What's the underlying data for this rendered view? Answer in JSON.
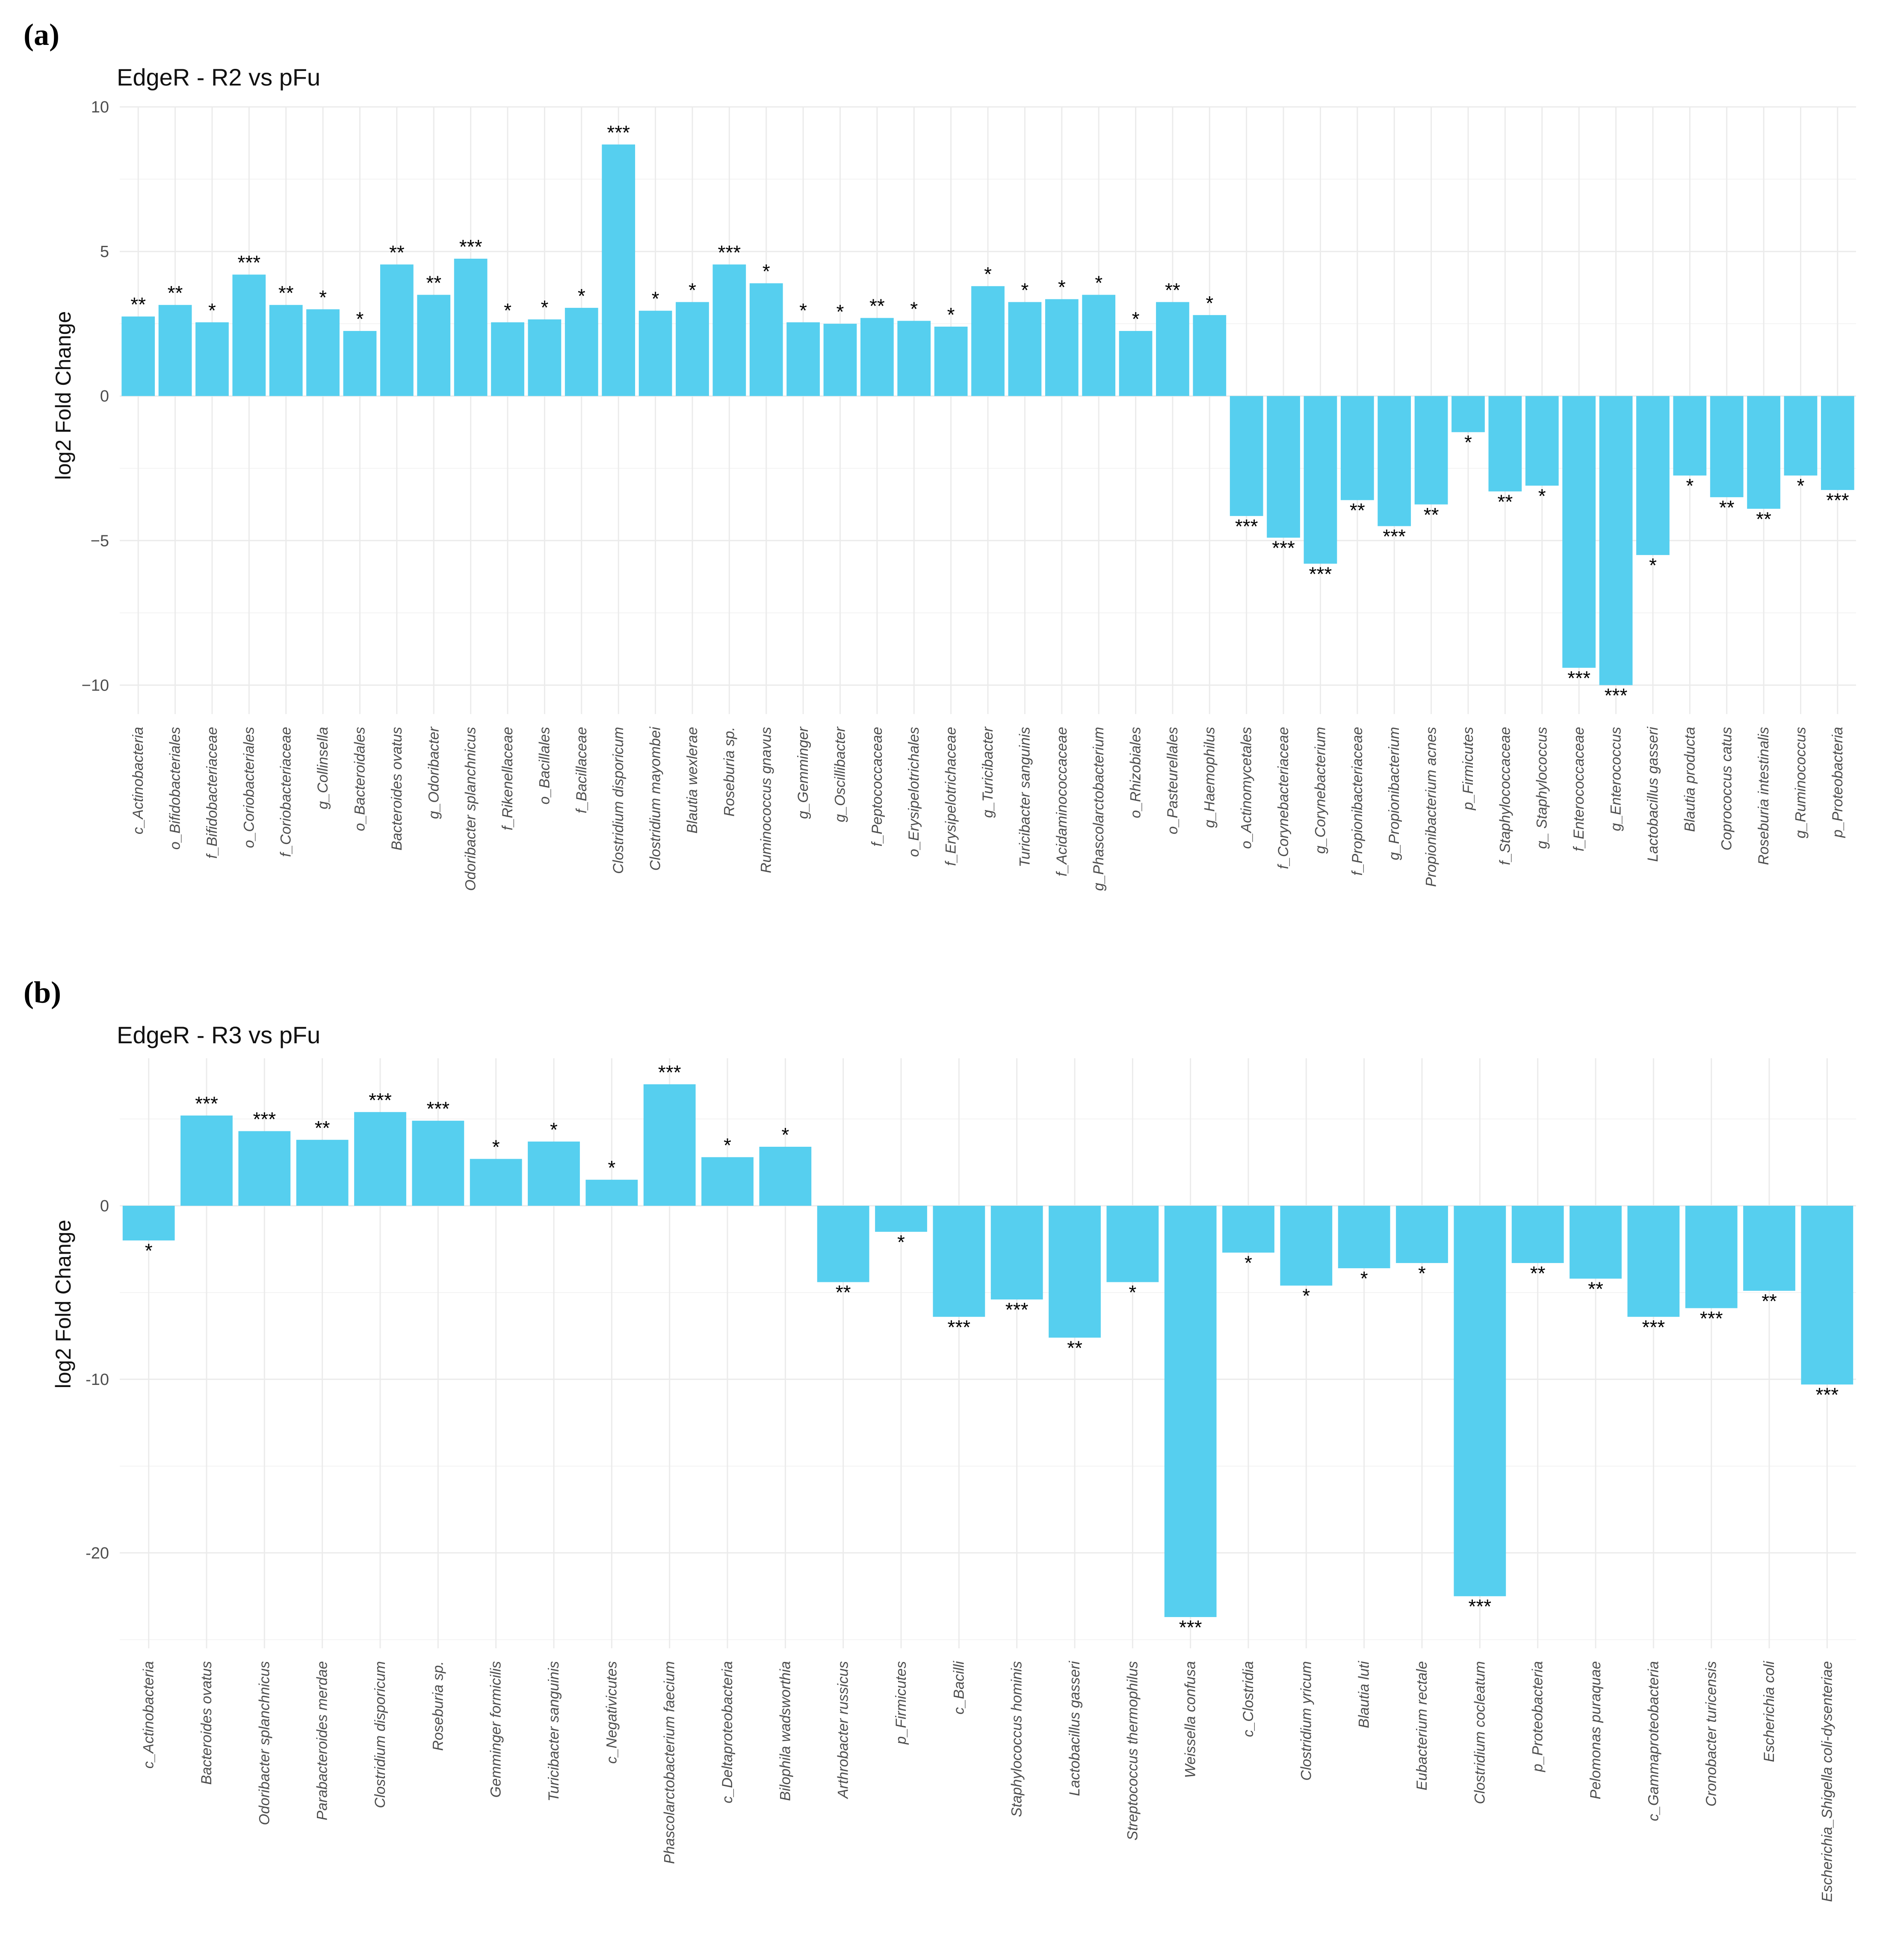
{
  "panels": [
    {
      "label": "(a)"
    },
    {
      "label": "(b)"
    }
  ],
  "colors": {
    "bar": "#56CFEF",
    "grid": "#EBEBEB",
    "text": "#4D4D4D"
  },
  "chart_data": [
    {
      "type": "bar",
      "title": "EdgeR - R2 vs pFu",
      "xlabel": "",
      "ylabel": "log2 Fold Change",
      "ylim": [
        -11,
        10
      ],
      "yticks": [
        10,
        5,
        0,
        -5,
        -10
      ],
      "ytick_labels": [
        "10",
        "5",
        "0",
        "−5",
        "−10"
      ],
      "grid": true,
      "categories": [
        "c_Actinobacteria",
        "o_Bifidobacteriales",
        "f_Bifidobacteriaceae",
        "o_Coriobacteriales",
        "f_Coriobacteriaceae",
        "g_Collinsella",
        "o_Bacteroidales",
        "Bacteroides  ovatus",
        "g_Odoribacter",
        "Odoribacter  splanchnicus",
        "f_Rikenellaceae",
        "o_Bacillales",
        "f_Bacillaceae",
        "Clostridium  disporicum",
        "Clostridium  mayombei",
        "Blautia  wexlerae",
        "Roseburia  sp.",
        "Ruminococcus  gnavus",
        "g_Gemminger",
        "g_Oscillibacter",
        "f_Peptococcaceae",
        "o_Erysipelotrichales",
        "f_Erysipelotrichaceae",
        "g_Turicibacter",
        "Turicibacter  sanguinis",
        "f_Acidaminococcaceae",
        "g_Phascolarctobacterium",
        "o_Rhizobiales",
        "o_Pasteurellales",
        "g_Haemophilus",
        "o_Actinomycetales",
        "f_Corynebacteriaceae",
        "g_Corynebacterium",
        "f_Propionibacteriaceae",
        "g_Propionibacterium",
        "Propionibacterium  acnes",
        "p_Firmicutes",
        "f_Staphylococcaceae",
        "g_  Staphylococcus",
        "f_Enterococcaceae",
        "g_Enterococcus",
        "Lactobacillus  gasseri",
        "Blautia  producta",
        "Coprococcus  catus",
        "Roseburia  intestinalis",
        "g_Ruminococcus",
        "p_Proteobacteria"
      ],
      "values": [
        2.75,
        3.15,
        2.55,
        4.2,
        3.15,
        3.0,
        2.25,
        4.55,
        3.5,
        4.75,
        2.55,
        2.65,
        3.05,
        8.7,
        2.95,
        3.25,
        4.55,
        3.9,
        2.55,
        2.5,
        2.7,
        2.6,
        2.4,
        3.8,
        3.25,
        3.35,
        3.5,
        2.25,
        3.25,
        2.8,
        -4.15,
        -4.9,
        -5.8,
        -3.6,
        -4.5,
        -3.75,
        -1.25,
        -3.3,
        -3.1,
        -9.4,
        -10.0,
        -5.5,
        -2.75,
        -3.5,
        -3.9,
        -2.75,
        -3.25
      ],
      "significance": [
        "**",
        "**",
        "*",
        "***",
        "**",
        "*",
        "*",
        "**",
        "**",
        "***",
        "*",
        "*",
        "*",
        "***",
        "*",
        "*",
        "***",
        "*",
        "*",
        "*",
        "**",
        "*",
        "*",
        "*",
        "*",
        "*",
        "*",
        "*",
        "**",
        "*",
        "***",
        "***",
        "***",
        "**",
        "***",
        "**",
        "*",
        "**",
        "*",
        "***",
        "***",
        "*",
        "*",
        "**",
        "**",
        "*",
        "***"
      ]
    },
    {
      "type": "bar",
      "title": "EdgeR - R3 vs pFu",
      "xlabel": "",
      "ylabel": "log2 Fold Change",
      "ylim": [
        -25.5,
        8.5
      ],
      "yticks": [
        0,
        -10,
        -20
      ],
      "ytick_labels": [
        "0",
        "-10",
        "-20"
      ],
      "grid": true,
      "categories": [
        "c_Actinobacteria",
        "Bacteroides  ovatus",
        "Odoribacter  splanchnicus",
        "Parabacteroides  merdae",
        "Clostridium  disporicum",
        "Roseburia  sp.",
        "Gemminger  formicilis",
        "Turicibacter  sanguinis",
        "c_Negativicutes",
        "Phascolarctobacterium  faecium",
        "c_Deltaproteobacteria",
        "Bilophila  wadsworthia",
        "Arthrobacter  russicus",
        "p_Firmicutes",
        "c_Bacilli",
        "Staphylococcus  hominis",
        "Lactobacillus  gasseri",
        "Streptococcus  thermophilus",
        "Weissella  confusa",
        "c_Clostridia",
        "Clostridium  yricum",
        "Blautia  luti",
        "Eubacterium  rectale",
        "Clostridium  cocleatum",
        "p_Proteobacteria",
        "Pelomonas  puraquae",
        "c_Gammaproteobacteria",
        "Cronobacter  turicensis",
        "Escherichia  coli",
        "Escherichia_Shigella  coli-dysenteriae"
      ],
      "values": [
        -2.0,
        5.2,
        4.3,
        3.8,
        5.4,
        4.9,
        2.7,
        3.7,
        1.5,
        7.0,
        2.8,
        3.4,
        -4.4,
        -1.5,
        -6.4,
        -5.4,
        -7.6,
        -4.4,
        -23.7,
        -2.7,
        -4.6,
        -3.6,
        -3.3,
        -22.5,
        -3.3,
        -4.2,
        -6.4,
        -5.9,
        -4.9,
        -10.3
      ],
      "significance": [
        "*",
        "***",
        "***",
        "**",
        "***",
        "***",
        "*",
        "*",
        "*",
        "***",
        "*",
        "*",
        "**",
        "*",
        "***",
        "***",
        "**",
        "*",
        "***",
        "*",
        "*",
        "*",
        "*",
        "***",
        "**",
        "**",
        "***",
        "***",
        "**",
        "***"
      ]
    }
  ]
}
